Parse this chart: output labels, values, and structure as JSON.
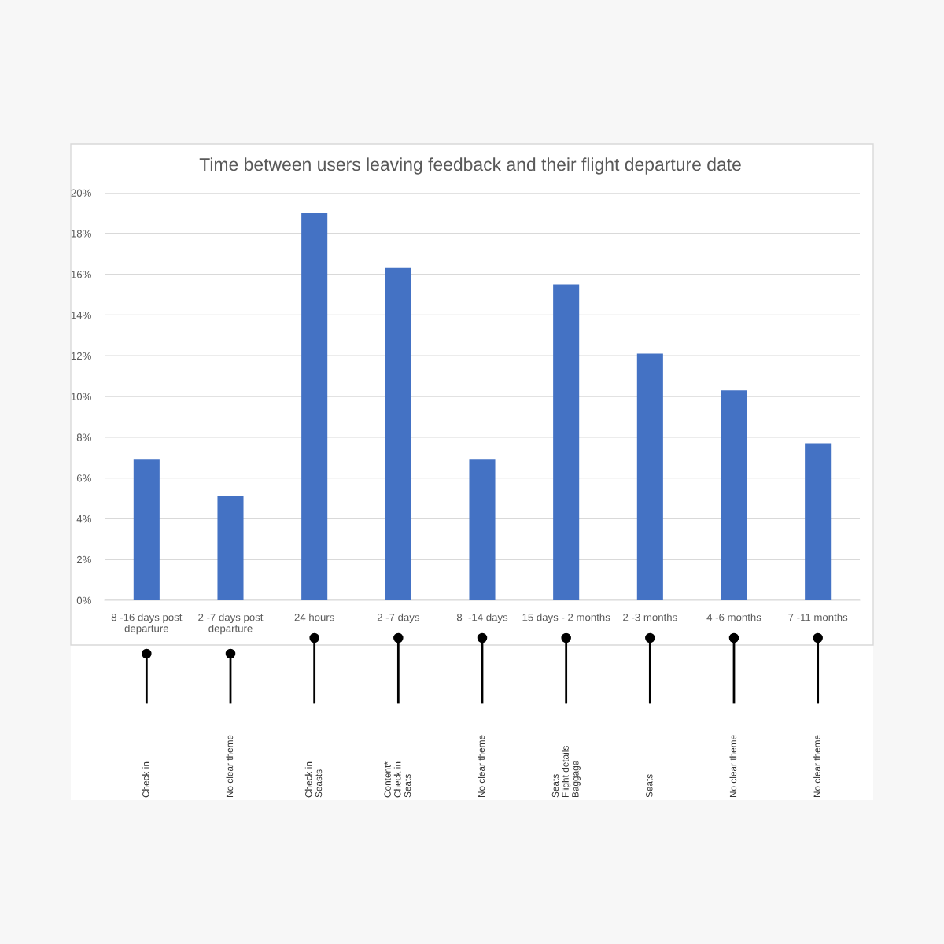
{
  "chart_data": {
    "type": "bar",
    "title": "Time between users leaving feedback and their flight departure date",
    "categories": [
      "8 -16 days post departure",
      "2 -7 days post departure",
      "24 hours",
      "2 -7 days",
      "8  -14 days",
      "15 days - 2 months",
      "2 -3 months",
      "4 -6 months",
      "7 -11 months"
    ],
    "values": [
      6.9,
      5.1,
      19.0,
      16.3,
      6.9,
      15.5,
      12.1,
      10.3,
      7.7
    ],
    "color": "#4472c4",
    "ylim": [
      0,
      20
    ],
    "yticks": [
      {
        "value": 0,
        "label": "0%"
      },
      {
        "value": 2,
        "label": "2%"
      },
      {
        "value": 4,
        "label": "4%"
      },
      {
        "value": 6,
        "label": "6%"
      },
      {
        "value": 8,
        "label": "8%"
      },
      {
        "value": 10,
        "label": "10%"
      },
      {
        "value": 12,
        "label": "12%"
      },
      {
        "value": 14,
        "label": "14%"
      },
      {
        "value": 16,
        "label": "16%"
      },
      {
        "value": 18,
        "label": "18%"
      },
      {
        "value": 20,
        "label": "20%"
      }
    ],
    "grid": "y",
    "annotations": [
      "Check in",
      "No clear theme",
      "Check in\nSeasts",
      "Content*\nCheck in\nSeats",
      "No clear theme",
      "Seats\nFlight details\nBaggage",
      "Seats",
      "No clear theme",
      "No clear theme"
    ]
  }
}
